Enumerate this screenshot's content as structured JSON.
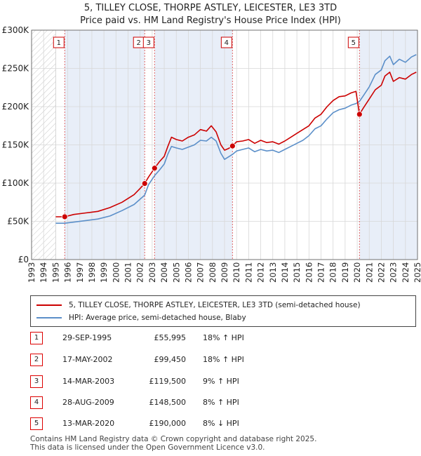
{
  "title": {
    "line1": "5, TILLEY CLOSE, THORPE ASTLEY, LEICESTER, LE3 3TD",
    "line2": "Price paid vs. HM Land Registry's House Price Index (HPI)"
  },
  "colors": {
    "property": "#cc0000",
    "hpi": "#5b8fc9",
    "shade": "#e8eef8",
    "grid": "#d7d7d7",
    "vline": "#e06666"
  },
  "chart_data": {
    "type": "line",
    "title": "5, TILLEY CLOSE, THORPE ASTLEY, LEICESTER, LE3 3TD",
    "subtitle": "Price paid vs. HM Land Registry's House Price Index (HPI)",
    "xlabel": "",
    "ylabel": "",
    "xlim": [
      1993,
      2025
    ],
    "ylim": [
      0,
      300000
    ],
    "x_ticks": [
      1993,
      1994,
      1995,
      1996,
      1997,
      1998,
      1999,
      2000,
      2001,
      2002,
      2003,
      2004,
      2005,
      2006,
      2007,
      2008,
      2009,
      2010,
      2011,
      2012,
      2013,
      2014,
      2015,
      2016,
      2017,
      2018,
      2019,
      2020,
      2021,
      2022,
      2023,
      2024,
      2025
    ],
    "y_ticks": [
      0,
      50000,
      100000,
      150000,
      200000,
      250000,
      300000
    ],
    "y_tick_labels": [
      "£0",
      "£50K",
      "£100K",
      "£150K",
      "£200K",
      "£250K",
      "£300K"
    ],
    "hatched_until": 1995.0,
    "grid": true,
    "series": [
      {
        "name": "5, TILLEY CLOSE, THORPE ASTLEY, LEICESTER, LE3 3TD (semi-detached house)",
        "x": [
          1995.0,
          1995.75,
          1996.5,
          1997.5,
          1998.5,
          1999.5,
          2000.5,
          2001.5,
          2002.0,
          2002.38,
          2002.7,
          2003.2,
          2003.6,
          2004.0,
          2004.3,
          2004.6,
          2005.0,
          2005.5,
          2006.0,
          2006.5,
          2007.0,
          2007.5,
          2007.9,
          2008.3,
          2008.7,
          2009.0,
          2009.3,
          2009.66,
          2010.0,
          2010.5,
          2011.0,
          2011.5,
          2012.0,
          2012.5,
          2013.0,
          2013.5,
          2014.0,
          2014.5,
          2015.0,
          2015.5,
          2016.0,
          2016.5,
          2017.0,
          2017.5,
          2018.0,
          2018.5,
          2019.0,
          2019.5,
          2019.9,
          2020.19,
          2020.5,
          2021.0,
          2021.5,
          2022.0,
          2022.3,
          2022.7,
          2023.0,
          2023.5,
          2024.0,
          2024.5,
          2024.9
        ],
        "values": [
          56000,
          55995,
          59000,
          61000,
          63000,
          68000,
          75000,
          85000,
          93000,
          99450,
          108000,
          119500,
          128000,
          135000,
          148000,
          160000,
          157000,
          155000,
          160000,
          163000,
          170000,
          168000,
          175000,
          167000,
          150000,
          143000,
          145000,
          148500,
          154000,
          155000,
          157000,
          152000,
          156000,
          153000,
          154000,
          151000,
          155000,
          160000,
          165000,
          170000,
          175000,
          185000,
          190000,
          200000,
          208000,
          213000,
          214000,
          218000,
          220000,
          190000,
          198000,
          210000,
          222000,
          228000,
          240000,
          245000,
          233000,
          238000,
          236000,
          242000,
          245000
        ]
      },
      {
        "name": "HPI: Average price, semi-detached house, Blaby",
        "x": [
          1995.0,
          1995.75,
          1996.5,
          1997.5,
          1998.5,
          1999.5,
          2000.5,
          2001.5,
          2002.0,
          2002.38,
          2002.7,
          2003.2,
          2003.6,
          2004.0,
          2004.3,
          2004.6,
          2005.0,
          2005.5,
          2006.0,
          2006.5,
          2007.0,
          2007.5,
          2007.9,
          2008.3,
          2008.7,
          2009.0,
          2009.3,
          2009.66,
          2010.0,
          2010.5,
          2011.0,
          2011.5,
          2012.0,
          2012.5,
          2013.0,
          2013.5,
          2014.0,
          2014.5,
          2015.0,
          2015.5,
          2016.0,
          2016.5,
          2017.0,
          2017.5,
          2018.0,
          2018.5,
          2019.0,
          2019.5,
          2019.9,
          2020.19,
          2020.5,
          2021.0,
          2021.5,
          2022.0,
          2022.3,
          2022.7,
          2023.0,
          2023.5,
          2024.0,
          2024.5,
          2024.9
        ],
        "values": [
          47500,
          47500,
          49000,
          51000,
          53000,
          57000,
          64000,
          72000,
          79000,
          84300,
          98000,
          109700,
          117000,
          125000,
          138000,
          148000,
          146000,
          144000,
          147000,
          150000,
          156000,
          155000,
          160000,
          155000,
          139000,
          131000,
          134000,
          137500,
          142000,
          144000,
          146000,
          141000,
          144000,
          142000,
          143000,
          140000,
          144000,
          148000,
          152000,
          156000,
          162000,
          171000,
          175000,
          184000,
          192000,
          196000,
          198000,
          202000,
          204000,
          206800,
          214000,
          226000,
          242000,
          248000,
          260000,
          266000,
          255000,
          262000,
          258000,
          265000,
          268000
        ]
      }
    ],
    "sales": [
      {
        "n": "1",
        "x": 1995.75,
        "value": 55995
      },
      {
        "n": "2",
        "x": 2002.38,
        "value": 99450
      },
      {
        "n": "3",
        "x": 2003.2,
        "value": 119500
      },
      {
        "n": "4",
        "x": 2009.66,
        "value": 148500
      },
      {
        "n": "5",
        "x": 2020.19,
        "value": 190000
      }
    ],
    "shaded_ranges": [
      [
        1995.75,
        2002.38
      ],
      [
        2003.2,
        2009.66
      ],
      [
        2020.19,
        2025
      ]
    ]
  },
  "legend": {
    "property_label": "5, TILLEY CLOSE, THORPE ASTLEY, LEICESTER, LE3 3TD (semi-detached house)",
    "hpi_label": "HPI: Average price, semi-detached house, Blaby"
  },
  "sales_table": [
    {
      "n": "1",
      "date": "29-SEP-1995",
      "price": "£55,995",
      "hpi": "18% ↑ HPI"
    },
    {
      "n": "2",
      "date": "17-MAY-2002",
      "price": "£99,450",
      "hpi": "18% ↑ HPI"
    },
    {
      "n": "3",
      "date": "14-MAR-2003",
      "price": "£119,500",
      "hpi": "9% ↑ HPI"
    },
    {
      "n": "4",
      "date": "28-AUG-2009",
      "price": "£148,500",
      "hpi": "8% ↑ HPI"
    },
    {
      "n": "5",
      "date": "13-MAR-2020",
      "price": "£190,000",
      "hpi": "8% ↓ HPI"
    }
  ],
  "footer": {
    "line1": "Contains HM Land Registry data © Crown copyright and database right 2025.",
    "line2": "This data is licensed under the Open Government Licence v3.0."
  }
}
